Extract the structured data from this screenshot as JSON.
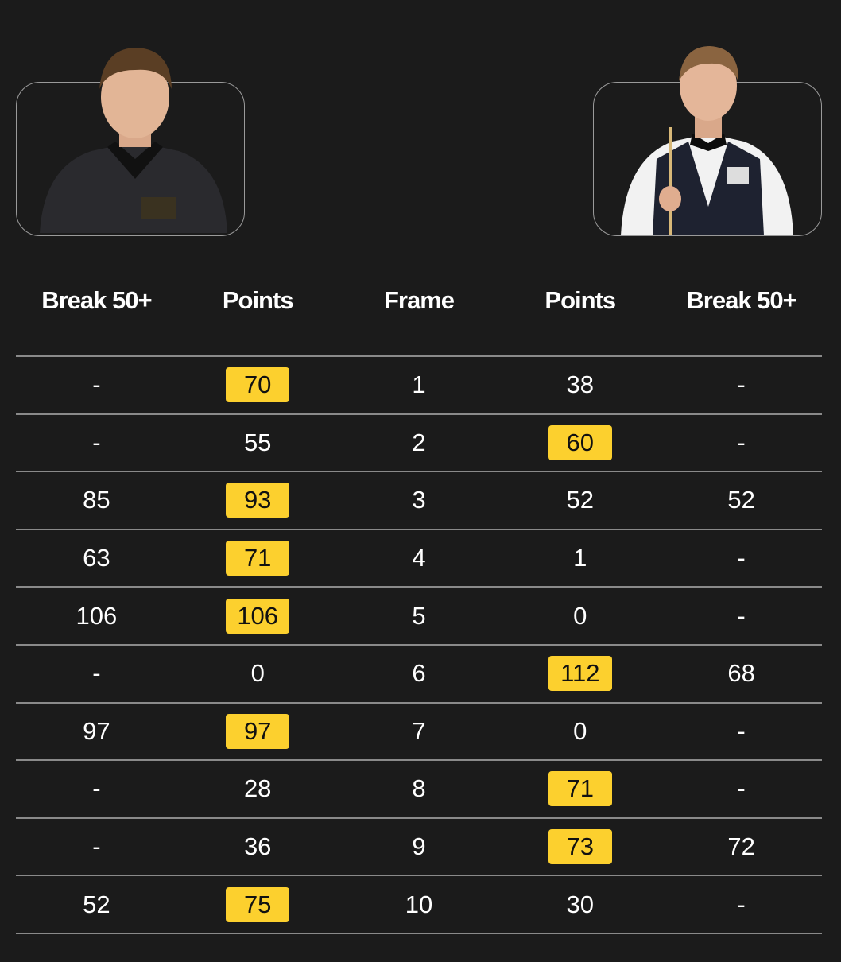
{
  "colors": {
    "background": "#1b1b1b",
    "winner_highlight": "#fcd02e"
  },
  "players": [
    {
      "side": "left",
      "image": "player-photo"
    },
    {
      "side": "right",
      "image": "player-photo"
    }
  ],
  "headers": [
    "Break 50+",
    "Points",
    "Frame",
    "Points",
    "Break 50+"
  ],
  "rows": [
    {
      "frame": "1",
      "p1_break": "-",
      "p1_points": "70",
      "p2_points": "38",
      "p2_break": "-",
      "winner": 1
    },
    {
      "frame": "2",
      "p1_break": "-",
      "p1_points": "55",
      "p2_points": "60",
      "p2_break": "-",
      "winner": 2
    },
    {
      "frame": "3",
      "p1_break": "85",
      "p1_points": "93",
      "p2_points": "52",
      "p2_break": "52",
      "winner": 1
    },
    {
      "frame": "4",
      "p1_break": "63",
      "p1_points": "71",
      "p2_points": "1",
      "p2_break": "-",
      "winner": 1
    },
    {
      "frame": "5",
      "p1_break": "106",
      "p1_points": "106",
      "p2_points": "0",
      "p2_break": "-",
      "winner": 1
    },
    {
      "frame": "6",
      "p1_break": "-",
      "p1_points": "0",
      "p2_points": "112",
      "p2_break": "68",
      "winner": 2
    },
    {
      "frame": "7",
      "p1_break": "97",
      "p1_points": "97",
      "p2_points": "0",
      "p2_break": "-",
      "winner": 1
    },
    {
      "frame": "8",
      "p1_break": "-",
      "p1_points": "28",
      "p2_points": "71",
      "p2_break": "-",
      "winner": 2
    },
    {
      "frame": "9",
      "p1_break": "-",
      "p1_points": "36",
      "p2_points": "73",
      "p2_break": "72",
      "winner": 2
    },
    {
      "frame": "10",
      "p1_break": "52",
      "p1_points": "75",
      "p2_points": "30",
      "p2_break": "-",
      "winner": 1
    }
  ]
}
